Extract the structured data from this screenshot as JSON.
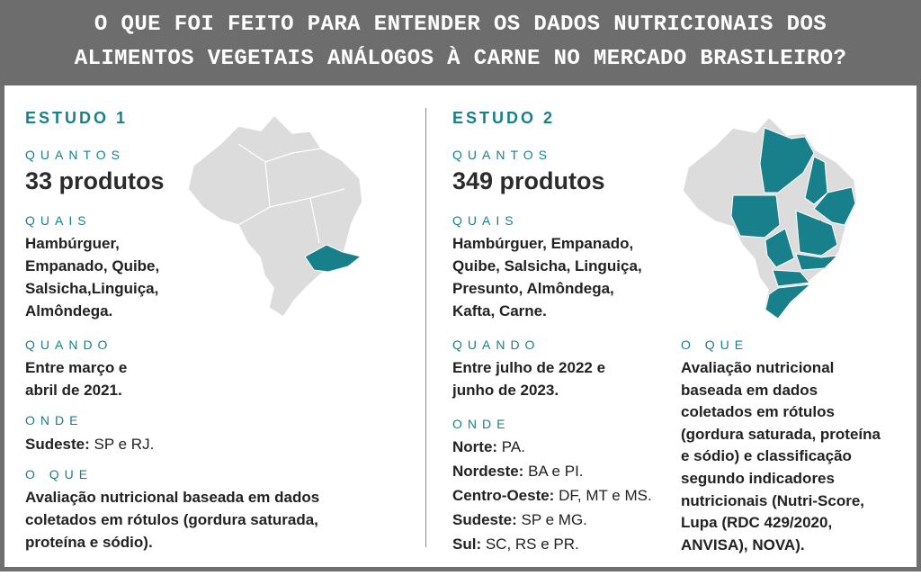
{
  "header": {
    "title_lines": [
      "O QUE FOI FEITO PARA ENTENDER OS DADOS NUTRICIONAIS DOS",
      "ALIMENTOS VEGETAIS ANÁLOGOS À CARNE NO MERCADO BRASILEIRO?"
    ]
  },
  "studies": [
    {
      "title": "ESTUDO 1",
      "quantos_label": "QUANTOS",
      "quantos": "33 produtos",
      "quais_label": "QUAIS",
      "quais_lines": [
        "Hambúrguer,",
        "Empanado, Quibe,",
        "Salsicha,Linguiça,",
        "Almôndega."
      ],
      "quando_label": "QUANDO",
      "quando_lines": [
        "Entre março e",
        "abril de 2021."
      ],
      "onde_label": "ONDE",
      "onde": [
        {
          "region": "Sudeste:",
          "states": "SP e RJ."
        }
      ],
      "oque_label": "O QUE",
      "oque_lines": [
        "Avaliação nutricional baseada em dados",
        "coletados em rótulos (gordura saturada,",
        "proteína e sódio)."
      ]
    },
    {
      "title": "ESTUDO 2",
      "quantos_label": "QUANTOS",
      "quantos": "349 produtos",
      "quais_label": "QUAIS",
      "quais_lines": [
        "Hambúrguer, Empanado,",
        "Quibe, Salsicha, Linguiça,",
        "Presunto, Almôndega,",
        "Kafta, Carne."
      ],
      "quando_label": "QUANDO",
      "quando_lines": [
        "Entre julho de 2022 e",
        "junho de 2023."
      ],
      "onde_label": "ONDE",
      "onde": [
        {
          "region": "Norte:",
          "states": "PA."
        },
        {
          "region": "Nordeste:",
          "states": "BA e PI."
        },
        {
          "region": "Centro-Oeste:",
          "states": "DF, MT e MS."
        },
        {
          "region": "Sudeste:",
          "states": "SP e MG."
        },
        {
          "region": "Sul:",
          "states": "SC, RS e PR."
        }
      ],
      "oque_label": "O QUE",
      "oque_lines": [
        "Avaliação nutricional",
        "baseada em dados",
        "coletados em rótulos",
        "(gordura saturada, proteína",
        "e sódio) e classificação",
        "segundo indicadores",
        "nutricionais (Nutri-Score,",
        "Lupa (RDC 429/2020,",
        "ANVISA), NOVA)."
      ]
    }
  ]
}
